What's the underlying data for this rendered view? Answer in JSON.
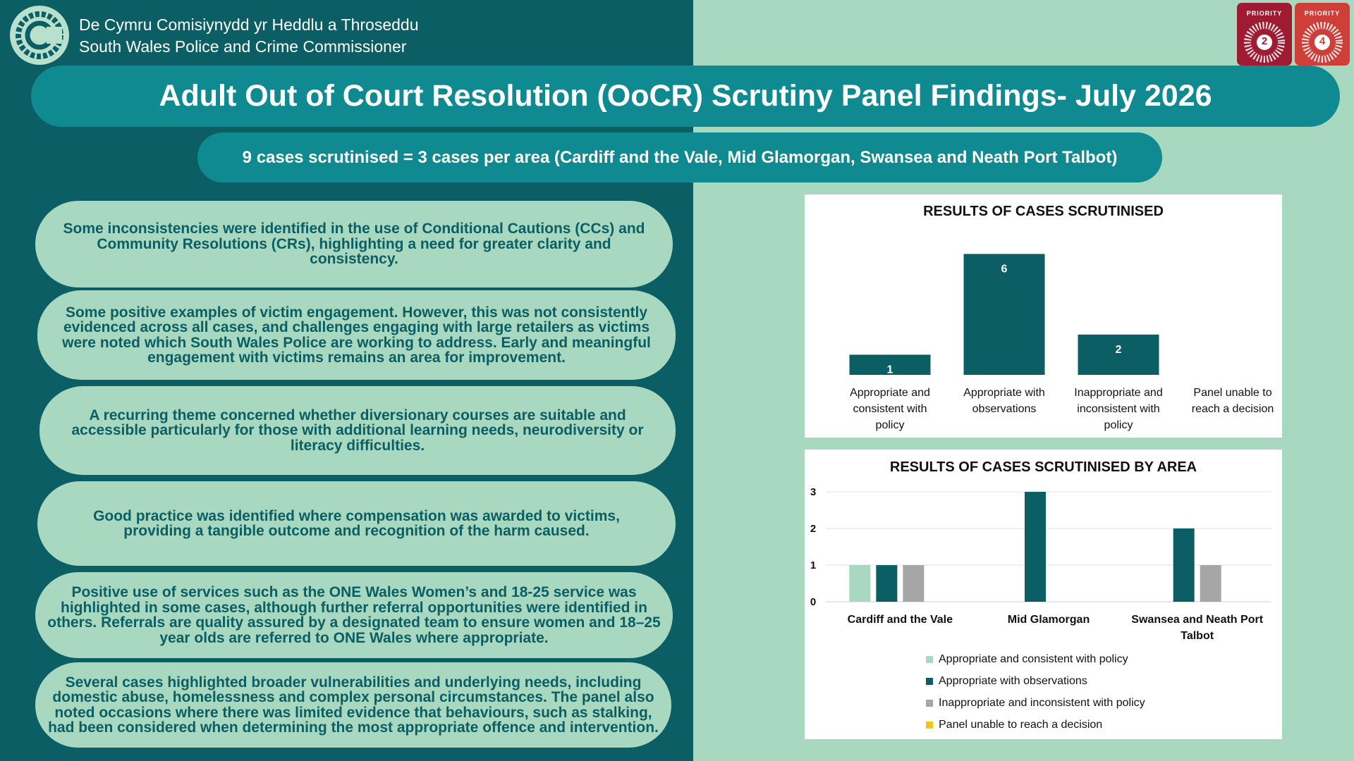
{
  "header": {
    "org_welsh": "De Cymru Comisiynydd yr Heddlu a Throseddu",
    "org_english": "South Wales Police and Crime Commissioner",
    "priorities": [
      {
        "label": "PRIORITY",
        "number": "2",
        "color": "#9e1b32"
      },
      {
        "label": "PRIORITY",
        "number": "4",
        "color": "#cf3f3a"
      }
    ]
  },
  "title": "Adult Out of Court Resolution (OoCR) Scrutiny Panel Findings- July 2026",
  "subtitle": "9 cases scrutinised = 3 cases per area (Cardiff and the Vale, Mid Glamorgan, Swansea and Neath Port Talbot)",
  "findings": [
    "Some inconsistencies were identified in the use of Conditional Cautions (CCs) and Community Resolutions (CRs), highlighting a need for greater clarity and consistency.",
    "Some positive examples of victim engagement. However, this was not consistently evidenced across all cases, and challenges engaging with large retailers as victims were noted which South Wales Police are working to address. Early and meaningful engagement with victims remains an area for improvement.",
    "A recurring theme concerned whether diversionary courses are suitable and accessible particularly for those with additional learning needs, neurodiversity or literacy difficulties.",
    "Good practice was identified where compensation was awarded to victims, providing a tangible outcome and recognition of the harm caused.",
    "Positive use of services such as the ONE Wales Women’s and 18-25 service was highlighted in some cases, although further referral opportunities were identified in others. Referrals are quality assured by a designated team to ensure women and 18–25 year olds are referred to ONE Wales where appropriate.",
    "Several cases highlighted broader vulnerabilities and underlying needs, including domestic abuse, homelessness and complex personal circumstances. The panel also noted occasions where there was limited evidence that behaviours, such as stalking, had been considered when determining the most appropriate offence and intervention."
  ],
  "colors": {
    "dark_teal": "#0b5e63",
    "mid_teal": "#0f8a90",
    "mint": "#a8d8c0",
    "grey": "#a6a6a6",
    "gold": "#f2c318"
  },
  "chart_data": [
    {
      "type": "bar",
      "title": "RESULTS OF CASES SCRUTINISED",
      "categories": [
        "Appropriate and consistent with policy",
        "Appropriate with observations",
        "Inappropriate and inconsistent with policy",
        "Panel unable to reach a decision"
      ],
      "category_lines": [
        [
          "Appropriate and",
          "consistent with",
          "policy"
        ],
        [
          "Appropriate with",
          "observations"
        ],
        [
          "Inappropriate and",
          "inconsistent with",
          "policy"
        ],
        [
          "Panel unable to",
          "reach a decision"
        ]
      ],
      "values": [
        1,
        6,
        2,
        0
      ],
      "data_labels": [
        "1",
        "6",
        "2",
        ""
      ],
      "color": "#0b5e63",
      "grid": false
    },
    {
      "type": "bar",
      "title": "RESULTS OF CASES SCRUTINISED BY AREA",
      "categories": [
        "Cardiff and the Vale",
        "Mid Glamorgan",
        "Swansea and Neath Port Talbot"
      ],
      "category_lines": [
        [
          "Cardiff and the Vale"
        ],
        [
          "Mid Glamorgan"
        ],
        [
          "Swansea and Neath Port",
          "Talbot"
        ]
      ],
      "ylim": [
        0,
        3
      ],
      "yticks": [
        "0",
        "1",
        "2",
        "3"
      ],
      "grid": true,
      "legend_position": "bottom",
      "series": [
        {
          "name": "Appropriate and consistent with policy",
          "values": [
            1,
            0,
            0
          ],
          "color": "#a8d8c0"
        },
        {
          "name": "Appropriate with observations",
          "values": [
            1,
            3,
            2
          ],
          "color": "#0b5e63"
        },
        {
          "name": "Inappropriate and inconsistent with policy",
          "values": [
            1,
            0,
            1
          ],
          "color": "#a6a6a6"
        },
        {
          "name": "Panel unable to reach a decision",
          "values": [
            0,
            0,
            0
          ],
          "color": "#f2c318"
        }
      ]
    }
  ]
}
